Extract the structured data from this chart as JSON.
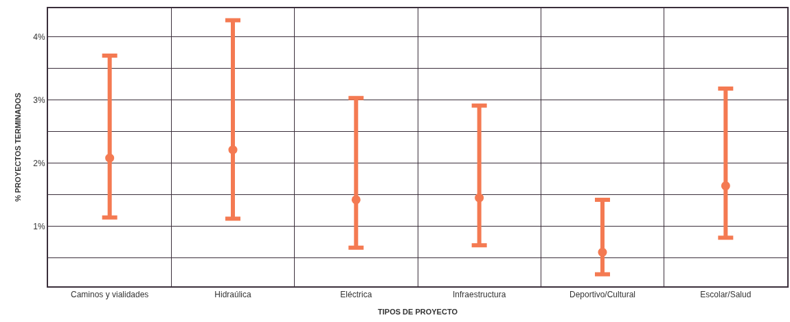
{
  "chart_data": {
    "type": "scatter",
    "xlabel": "TIPOS DE PROYECTO",
    "ylabel": "% PROYECTOS TERMINADOS",
    "categories": [
      "Caminos y vialidades",
      "Hidraúlica",
      "Eléctrica",
      "Infraestructura",
      "Deportivo/Cultural",
      "Escolar/Salud"
    ],
    "values": [
      2.08,
      2.21,
      1.42,
      1.45,
      0.59,
      1.64
    ],
    "errors": [
      [
        1.14,
        3.7
      ],
      [
        1.12,
        4.26
      ],
      [
        0.66,
        3.03
      ],
      [
        0.7,
        2.91
      ],
      [
        0.24,
        1.42
      ],
      [
        0.82,
        3.18
      ]
    ],
    "color": "#f47a52",
    "marker": "circle",
    "ylim": [
      0.05,
      4.45
    ],
    "yticks": [
      {
        "value": 0.5,
        "label": null
      },
      {
        "value": 1,
        "label": "1%"
      },
      {
        "value": 1.5,
        "label": null
      },
      {
        "value": 2,
        "label": "2%"
      },
      {
        "value": 2.5,
        "label": null
      },
      {
        "value": 3,
        "label": "3%"
      },
      {
        "value": 3.5,
        "label": null
      },
      {
        "value": 4,
        "label": "4%"
      }
    ],
    "grid": true
  }
}
